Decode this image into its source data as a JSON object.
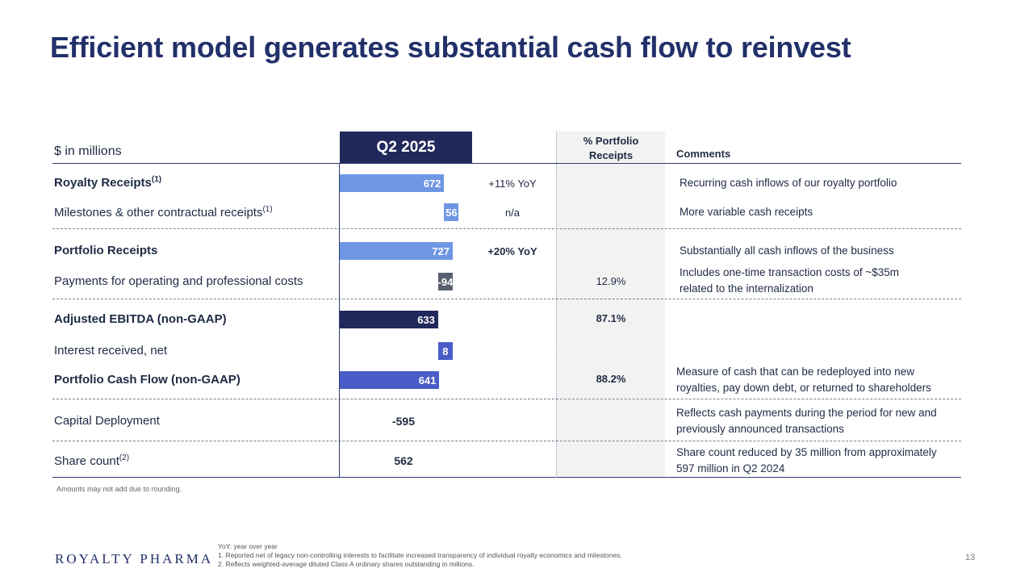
{
  "title": "Efficient model generates substantial cash flow to reinvest",
  "header": {
    "units": "$ in millions",
    "period": "Q2 2025",
    "pct_line1": "% Portfolio",
    "pct_line2": "Receipts",
    "comments": "Comments"
  },
  "rows": {
    "royalty": {
      "label": "Royalty Receipts",
      "sup": "(1)",
      "value": "672",
      "yoy": "+11% YoY",
      "comment": "Recurring cash inflows of our royalty portfolio"
    },
    "milestones": {
      "label": "Milestones & other contractual receipts",
      "sup": "(1)",
      "value": "56",
      "yoy": "n/a",
      "comment": "More variable cash receipts"
    },
    "portfolio": {
      "label": "Portfolio Receipts",
      "value": "727",
      "yoy": "+20% YoY",
      "comment": "Substantially all cash inflows of the business"
    },
    "payments": {
      "label": "Payments for operating and professional costs",
      "value": "-94",
      "pct": "12.9%",
      "comment1": "Includes one-time transaction costs of ~$35m",
      "comment2": "related to the internalization"
    },
    "ebitda": {
      "label": "Adjusted EBITDA (non-GAAP)",
      "value": "633",
      "pct": "87.1%"
    },
    "interest": {
      "label": "Interest received, net",
      "value": "8"
    },
    "pcf": {
      "label": "Portfolio Cash Flow (non-GAAP)",
      "value": "641",
      "pct": "88.2%",
      "comment1": "Measure of cash that can be redeployed into new",
      "comment2": "royalties, pay down debt, or returned to shareholders"
    },
    "capital": {
      "label": "Capital Deployment",
      "value": "-595",
      "comment1": "Reflects cash payments during the period for new and",
      "comment2": "previously announced transactions"
    },
    "shares": {
      "label": "Share count",
      "sup": "(2)",
      "value": "562",
      "comment1": "Share count reduced by 35 million from approximately",
      "comment2": "597 million in Q2 2024"
    }
  },
  "notes": {
    "rounding": "Amounts may not add due to rounding.",
    "yoy": "YoY: year over year",
    "fn1": "1.   Reported net of legacy non-controlling interests to facilitate increased transparency of individual royalty economics and milestones.",
    "fn2": "2.   Reflects weighted-average diluted Class A ordinary shares outstanding in millions."
  },
  "logo": "ROYALTY PHARMA",
  "page_number": "13",
  "colors": {
    "light_bar": "#6e96e3",
    "grey_bar": "#59606f",
    "navy_bar": "#21295c",
    "blue_bar": "#4a5cc8",
    "title": "#22306a"
  }
}
